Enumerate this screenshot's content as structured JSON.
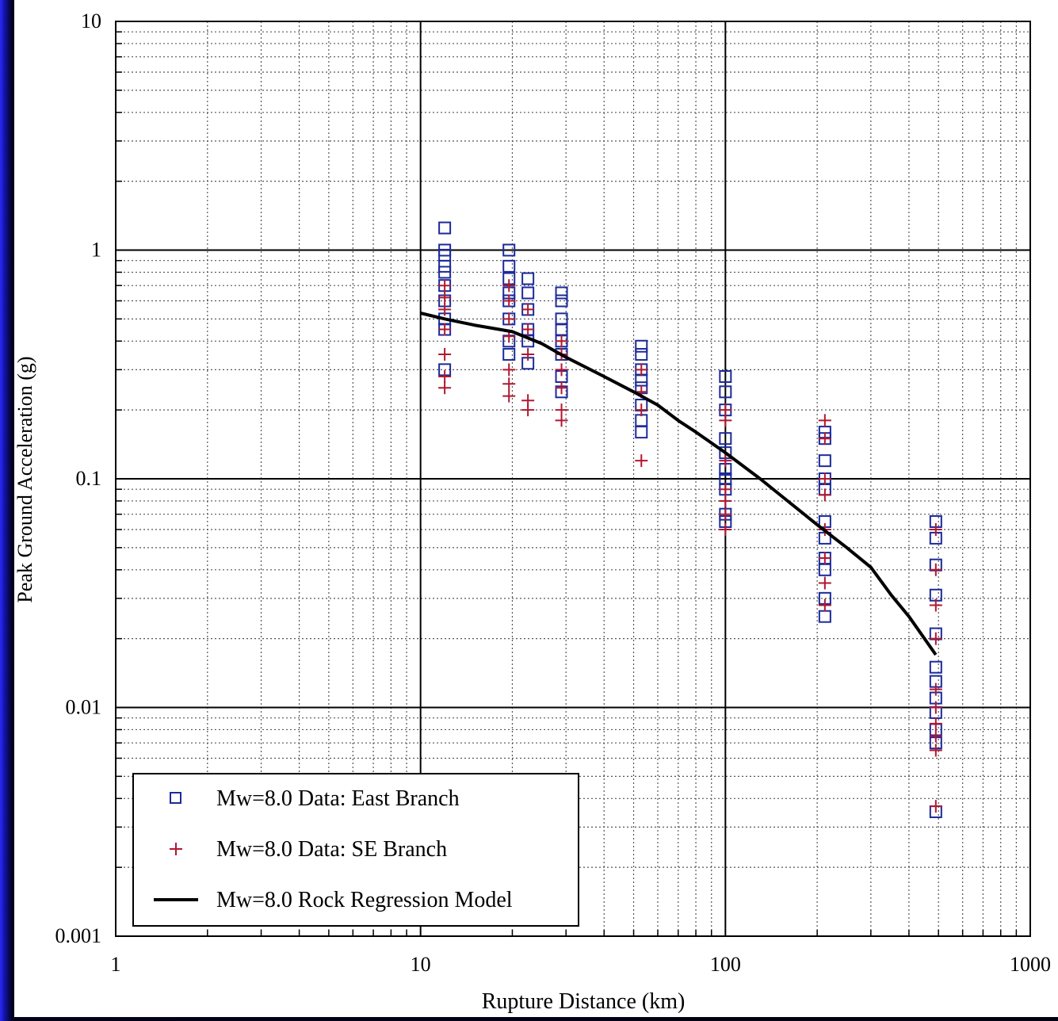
{
  "chart_data": {
    "type": "scatter",
    "title": "",
    "xlabel": "Rupture Distance (km)",
    "ylabel": "Peak Ground Acceleration (g)",
    "x_scale": "log",
    "y_scale": "log",
    "xlim": [
      1,
      1000
    ],
    "ylim": [
      0.001,
      10
    ],
    "x_ticks": [
      "1",
      "10",
      "100",
      "1000"
    ],
    "y_ticks": [
      "0.001",
      "0.01",
      "0.1",
      "1",
      "10"
    ],
    "grid": true,
    "legend_position": "bottom-left",
    "series": [
      {
        "name": "Mw=8.0 Data: East Branch",
        "marker": "square",
        "color": "#1c2a9a",
        "points": [
          [
            12,
            1.25
          ],
          [
            12,
            1.0
          ],
          [
            12,
            0.95
          ],
          [
            12,
            0.85
          ],
          [
            12,
            0.8
          ],
          [
            12,
            0.7
          ],
          [
            12,
            0.6
          ],
          [
            12,
            0.5
          ],
          [
            12,
            0.45
          ],
          [
            12,
            0.3
          ],
          [
            19.5,
            1.0
          ],
          [
            19.5,
            0.85
          ],
          [
            19.5,
            0.75
          ],
          [
            19.5,
            0.65
          ],
          [
            19.5,
            0.6
          ],
          [
            19.5,
            0.5
          ],
          [
            19.5,
            0.4
          ],
          [
            19.5,
            0.35
          ],
          [
            22.5,
            0.75
          ],
          [
            22.5,
            0.65
          ],
          [
            22.5,
            0.55
          ],
          [
            22.5,
            0.45
          ],
          [
            22.5,
            0.4
          ],
          [
            22.5,
            0.32
          ],
          [
            29,
            0.65
          ],
          [
            29,
            0.6
          ],
          [
            29,
            0.5
          ],
          [
            29,
            0.45
          ],
          [
            29,
            0.4
          ],
          [
            29,
            0.35
          ],
          [
            29,
            0.28
          ],
          [
            29,
            0.24
          ],
          [
            53,
            0.38
          ],
          [
            53,
            0.35
          ],
          [
            53,
            0.3
          ],
          [
            53,
            0.27
          ],
          [
            53,
            0.25
          ],
          [
            53,
            0.21
          ],
          [
            53,
            0.18
          ],
          [
            53,
            0.16
          ],
          [
            100,
            0.28
          ],
          [
            100,
            0.24
          ],
          [
            100,
            0.2
          ],
          [
            100,
            0.15
          ],
          [
            100,
            0.13
          ],
          [
            100,
            0.11
          ],
          [
            100,
            0.1
          ],
          [
            100,
            0.09
          ],
          [
            100,
            0.07
          ],
          [
            100,
            0.065
          ],
          [
            212,
            0.16
          ],
          [
            212,
            0.15
          ],
          [
            212,
            0.12
          ],
          [
            212,
            0.1
          ],
          [
            212,
            0.09
          ],
          [
            212,
            0.065
          ],
          [
            212,
            0.055
          ],
          [
            212,
            0.045
          ],
          [
            212,
            0.04
          ],
          [
            212,
            0.03
          ],
          [
            212,
            0.025
          ],
          [
            490,
            0.065
          ],
          [
            490,
            0.055
          ],
          [
            490,
            0.042
          ],
          [
            490,
            0.031
          ],
          [
            490,
            0.021
          ],
          [
            490,
            0.015
          ],
          [
            490,
            0.013
          ],
          [
            490,
            0.011
          ],
          [
            490,
            0.0095
          ],
          [
            490,
            0.008
          ],
          [
            490,
            0.007
          ],
          [
            490,
            0.0035
          ]
        ]
      },
      {
        "name": "Mw=8.0 Data: SE Branch",
        "marker": "plus",
        "color": "#b01830",
        "points": [
          [
            12,
            0.7
          ],
          [
            12,
            0.62
          ],
          [
            12,
            0.55
          ],
          [
            12,
            0.45
          ],
          [
            12,
            0.35
          ],
          [
            12,
            0.28
          ],
          [
            12,
            0.25
          ],
          [
            19.5,
            0.7
          ],
          [
            19.5,
            0.6
          ],
          [
            19.5,
            0.5
          ],
          [
            19.5,
            0.42
          ],
          [
            19.5,
            0.3
          ],
          [
            19.5,
            0.26
          ],
          [
            19.5,
            0.23
          ],
          [
            22.5,
            0.55
          ],
          [
            22.5,
            0.45
          ],
          [
            22.5,
            0.35
          ],
          [
            22.5,
            0.22
          ],
          [
            22.5,
            0.2
          ],
          [
            29,
            0.4
          ],
          [
            29,
            0.35
          ],
          [
            29,
            0.3
          ],
          [
            29,
            0.25
          ],
          [
            29,
            0.2
          ],
          [
            29,
            0.18
          ],
          [
            53,
            0.3
          ],
          [
            53,
            0.24
          ],
          [
            53,
            0.2
          ],
          [
            53,
            0.12
          ],
          [
            100,
            0.2
          ],
          [
            100,
            0.18
          ],
          [
            100,
            0.12
          ],
          [
            100,
            0.09
          ],
          [
            100,
            0.08
          ],
          [
            100,
            0.07
          ],
          [
            100,
            0.06
          ],
          [
            212,
            0.18
          ],
          [
            212,
            0.15
          ],
          [
            212,
            0.1
          ],
          [
            212,
            0.085
          ],
          [
            212,
            0.06
          ],
          [
            212,
            0.045
          ],
          [
            212,
            0.035
          ],
          [
            212,
            0.028
          ],
          [
            490,
            0.06
          ],
          [
            490,
            0.04
          ],
          [
            490,
            0.028
          ],
          [
            490,
            0.02
          ],
          [
            490,
            0.012
          ],
          [
            490,
            0.01
          ],
          [
            490,
            0.0085
          ],
          [
            490,
            0.0075
          ],
          [
            490,
            0.0065
          ],
          [
            490,
            0.0037
          ]
        ]
      },
      {
        "name": "Mw=8.0 Rock Regression Model",
        "marker": "line",
        "color": "#000000",
        "points": [
          [
            10,
            0.53
          ],
          [
            12,
            0.5
          ],
          [
            15,
            0.47
          ],
          [
            20,
            0.44
          ],
          [
            25,
            0.39
          ],
          [
            30,
            0.34
          ],
          [
            40,
            0.28
          ],
          [
            50,
            0.24
          ],
          [
            60,
            0.21
          ],
          [
            70,
            0.18
          ],
          [
            80,
            0.16
          ],
          [
            100,
            0.13
          ],
          [
            130,
            0.1
          ],
          [
            160,
            0.08
          ],
          [
            200,
            0.063
          ],
          [
            250,
            0.05
          ],
          [
            300,
            0.041
          ],
          [
            350,
            0.031
          ],
          [
            400,
            0.025
          ],
          [
            450,
            0.02
          ],
          [
            490,
            0.017
          ]
        ]
      }
    ]
  }
}
